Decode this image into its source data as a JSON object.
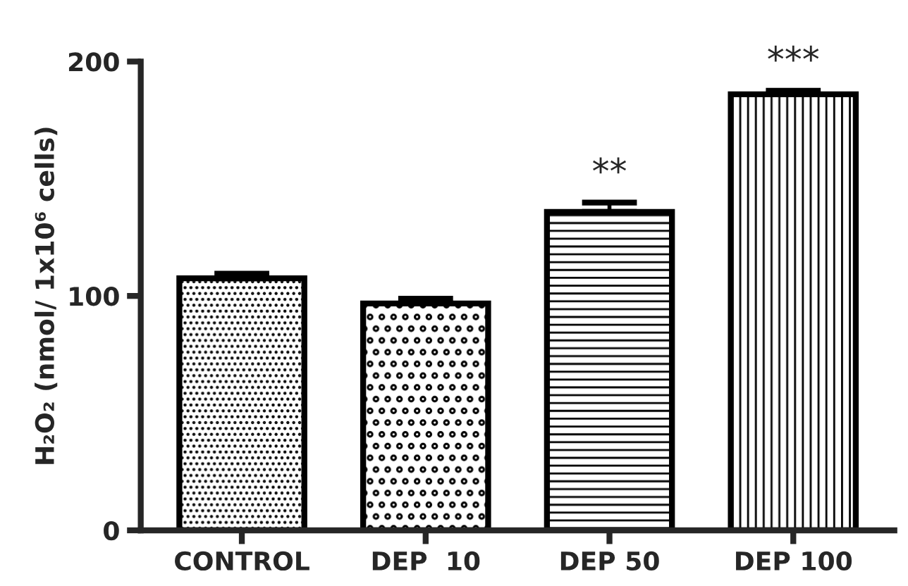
{
  "chart_data": {
    "type": "bar",
    "categories": [
      "CONTROL",
      "DEP  10",
      "DEP 50",
      "DEP 100"
    ],
    "values": [
      107.5,
      96.8,
      135.8,
      186
    ],
    "errors": [
      2,
      2,
      4,
      1.5
    ],
    "color": "#000000",
    "ylabel": "H₂O₂ (nmol/ 1x10⁶ cells)",
    "ylim": [
      0,
      200
    ],
    "yticks": [
      0,
      100,
      200
    ],
    "annotations": [
      "**",
      "***"
    ]
  }
}
